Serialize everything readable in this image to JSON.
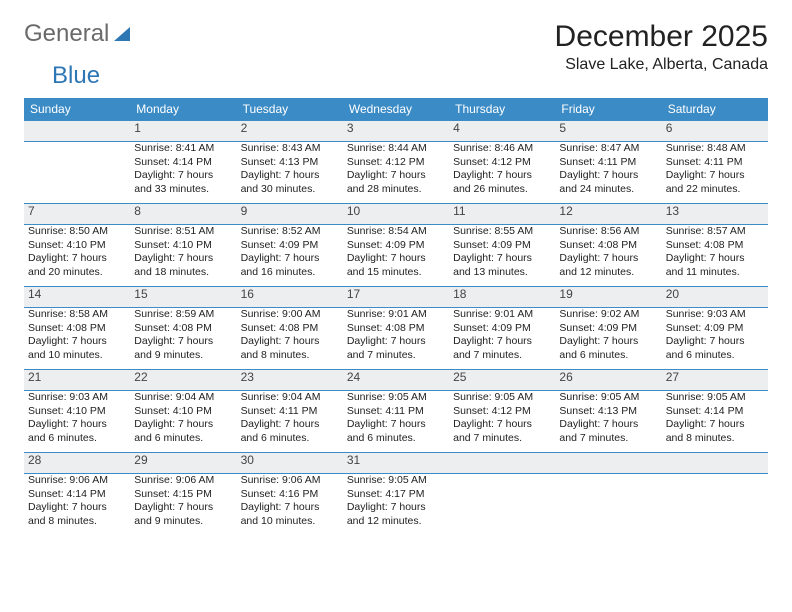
{
  "brand": {
    "part1": "General",
    "part2": "Blue"
  },
  "title": "December 2025",
  "location": "Slave Lake, Alberta, Canada",
  "colors": {
    "header_bg": "#3b8bc6",
    "header_fg": "#ffffff",
    "daynum_bg": "#eceef0",
    "border": "#3b8bc6",
    "logo_gray": "#6a6a6a",
    "logo_blue": "#2d77b5"
  },
  "weekdays": [
    "Sunday",
    "Monday",
    "Tuesday",
    "Wednesday",
    "Thursday",
    "Friday",
    "Saturday"
  ],
  "layout": {
    "first_weekday_index": 1,
    "days_in_month": 31
  },
  "days": {
    "1": {
      "sunrise": "8:41 AM",
      "sunset": "4:14 PM",
      "daylight": "7 hours and 33 minutes."
    },
    "2": {
      "sunrise": "8:43 AM",
      "sunset": "4:13 PM",
      "daylight": "7 hours and 30 minutes."
    },
    "3": {
      "sunrise": "8:44 AM",
      "sunset": "4:12 PM",
      "daylight": "7 hours and 28 minutes."
    },
    "4": {
      "sunrise": "8:46 AM",
      "sunset": "4:12 PM",
      "daylight": "7 hours and 26 minutes."
    },
    "5": {
      "sunrise": "8:47 AM",
      "sunset": "4:11 PM",
      "daylight": "7 hours and 24 minutes."
    },
    "6": {
      "sunrise": "8:48 AM",
      "sunset": "4:11 PM",
      "daylight": "7 hours and 22 minutes."
    },
    "7": {
      "sunrise": "8:50 AM",
      "sunset": "4:10 PM",
      "daylight": "7 hours and 20 minutes."
    },
    "8": {
      "sunrise": "8:51 AM",
      "sunset": "4:10 PM",
      "daylight": "7 hours and 18 minutes."
    },
    "9": {
      "sunrise": "8:52 AM",
      "sunset": "4:09 PM",
      "daylight": "7 hours and 16 minutes."
    },
    "10": {
      "sunrise": "8:54 AM",
      "sunset": "4:09 PM",
      "daylight": "7 hours and 15 minutes."
    },
    "11": {
      "sunrise": "8:55 AM",
      "sunset": "4:09 PM",
      "daylight": "7 hours and 13 minutes."
    },
    "12": {
      "sunrise": "8:56 AM",
      "sunset": "4:08 PM",
      "daylight": "7 hours and 12 minutes."
    },
    "13": {
      "sunrise": "8:57 AM",
      "sunset": "4:08 PM",
      "daylight": "7 hours and 11 minutes."
    },
    "14": {
      "sunrise": "8:58 AM",
      "sunset": "4:08 PM",
      "daylight": "7 hours and 10 minutes."
    },
    "15": {
      "sunrise": "8:59 AM",
      "sunset": "4:08 PM",
      "daylight": "7 hours and 9 minutes."
    },
    "16": {
      "sunrise": "9:00 AM",
      "sunset": "4:08 PM",
      "daylight": "7 hours and 8 minutes."
    },
    "17": {
      "sunrise": "9:01 AM",
      "sunset": "4:08 PM",
      "daylight": "7 hours and 7 minutes."
    },
    "18": {
      "sunrise": "9:01 AM",
      "sunset": "4:09 PM",
      "daylight": "7 hours and 7 minutes."
    },
    "19": {
      "sunrise": "9:02 AM",
      "sunset": "4:09 PM",
      "daylight": "7 hours and 6 minutes."
    },
    "20": {
      "sunrise": "9:03 AM",
      "sunset": "4:09 PM",
      "daylight": "7 hours and 6 minutes."
    },
    "21": {
      "sunrise": "9:03 AM",
      "sunset": "4:10 PM",
      "daylight": "7 hours and 6 minutes."
    },
    "22": {
      "sunrise": "9:04 AM",
      "sunset": "4:10 PM",
      "daylight": "7 hours and 6 minutes."
    },
    "23": {
      "sunrise": "9:04 AM",
      "sunset": "4:11 PM",
      "daylight": "7 hours and 6 minutes."
    },
    "24": {
      "sunrise": "9:05 AM",
      "sunset": "4:11 PM",
      "daylight": "7 hours and 6 minutes."
    },
    "25": {
      "sunrise": "9:05 AM",
      "sunset": "4:12 PM",
      "daylight": "7 hours and 7 minutes."
    },
    "26": {
      "sunrise": "9:05 AM",
      "sunset": "4:13 PM",
      "daylight": "7 hours and 7 minutes."
    },
    "27": {
      "sunrise": "9:05 AM",
      "sunset": "4:14 PM",
      "daylight": "7 hours and 8 minutes."
    },
    "28": {
      "sunrise": "9:06 AM",
      "sunset": "4:14 PM",
      "daylight": "7 hours and 8 minutes."
    },
    "29": {
      "sunrise": "9:06 AM",
      "sunset": "4:15 PM",
      "daylight": "7 hours and 9 minutes."
    },
    "30": {
      "sunrise": "9:06 AM",
      "sunset": "4:16 PM",
      "daylight": "7 hours and 10 minutes."
    },
    "31": {
      "sunrise": "9:05 AM",
      "sunset": "4:17 PM",
      "daylight": "7 hours and 12 minutes."
    }
  },
  "labels": {
    "sunrise": "Sunrise: ",
    "sunset": "Sunset: ",
    "daylight": "Daylight: "
  }
}
